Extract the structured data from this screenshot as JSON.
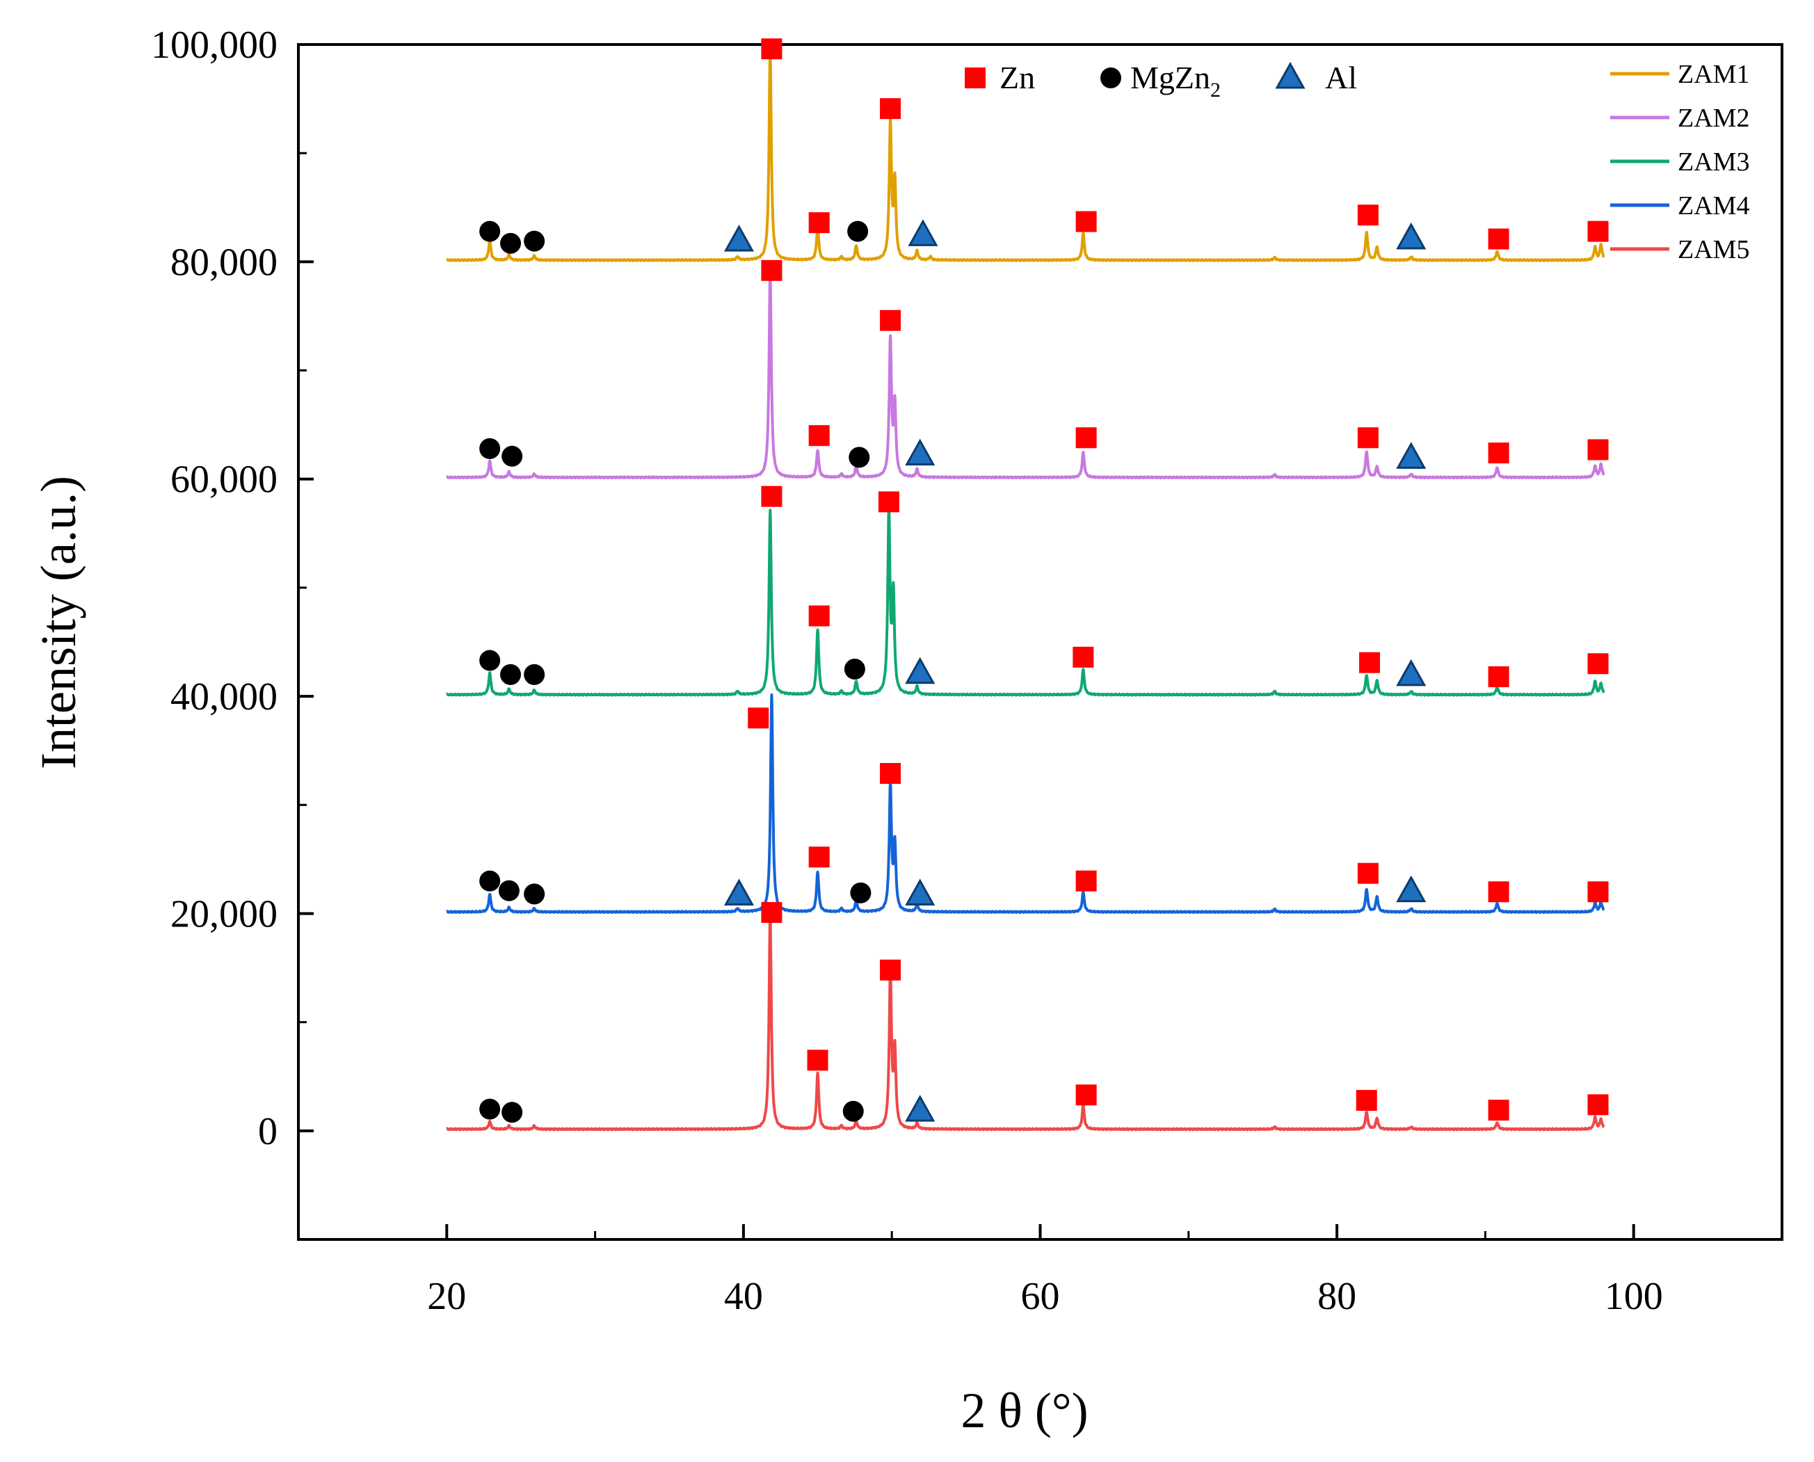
{
  "chart_data": {
    "type": "line",
    "title": "",
    "xlabel": "2 θ (°)",
    "ylabel": "Intensity (a.u.)",
    "xlim": [
      10,
      110
    ],
    "ylim": [
      -10000,
      100000
    ],
    "x_ticks": [
      20,
      40,
      60,
      80,
      100
    ],
    "x_tick_labels": [
      "20",
      "40",
      "60",
      "80",
      "100"
    ],
    "y_ticks": [
      0,
      20000,
      40000,
      60000,
      80000,
      100000
    ],
    "y_tick_labels": [
      "0",
      "20,000",
      "40,000",
      "60,000",
      "80,000",
      "100,000"
    ],
    "grid": false,
    "legend_position": "top-right",
    "phase_legend": {
      "zn": "Zn",
      "mgzn2_base": "MgZn",
      "mgzn2_sub": "2",
      "al": "Al"
    },
    "marker_colors": {
      "zn": "#ff0000",
      "mgzn2": "#000000",
      "al": "#1f6fc0"
    },
    "series": [
      {
        "name": "ZAM1",
        "color": "#e0a000",
        "offset": 80000,
        "peaks": [
          [
            22.9,
            1800
          ],
          [
            24.2,
            500
          ],
          [
            25.9,
            400
          ],
          [
            39.6,
            300
          ],
          [
            41.8,
            19500
          ],
          [
            45.0,
            3000
          ],
          [
            46.6,
            300
          ],
          [
            47.6,
            1300
          ],
          [
            49.9,
            12500
          ],
          [
            50.2,
            7000
          ],
          [
            51.7,
            800
          ],
          [
            52.6,
            300
          ],
          [
            62.9,
            2500
          ],
          [
            75.8,
            250
          ],
          [
            82.0,
            2600
          ],
          [
            82.7,
            1200
          ],
          [
            85.0,
            300
          ],
          [
            90.8,
            800
          ],
          [
            97.4,
            1200
          ],
          [
            97.8,
            1400
          ]
        ],
        "markers": [
          {
            "type": "mgzn2",
            "x": 22.9,
            "y": 82800
          },
          {
            "type": "mgzn2",
            "x": 24.3,
            "y": 81700
          },
          {
            "type": "mgzn2",
            "x": 25.9,
            "y": 81900
          },
          {
            "type": "al",
            "x": 39.7,
            "y": 82000
          },
          {
            "type": "zn",
            "x": 41.9,
            "y": 99600
          },
          {
            "type": "zn",
            "x": 45.1,
            "y": 83600
          },
          {
            "type": "mgzn2",
            "x": 47.7,
            "y": 82800
          },
          {
            "type": "zn",
            "x": 49.9,
            "y": 94100
          },
          {
            "type": "al",
            "x": 52.1,
            "y": 82500
          },
          {
            "type": "zn",
            "x": 63.1,
            "y": 83700
          },
          {
            "type": "zn",
            "x": 82.1,
            "y": 84300
          },
          {
            "type": "al",
            "x": 85.0,
            "y": 82200
          },
          {
            "type": "zn",
            "x": 90.9,
            "y": 82100
          },
          {
            "type": "zn",
            "x": 97.6,
            "y": 82800
          }
        ]
      },
      {
        "name": "ZAM2",
        "color": "#c878e0",
        "offset": 60000,
        "peaks": [
          [
            22.9,
            1500
          ],
          [
            24.2,
            500
          ],
          [
            25.9,
            300
          ],
          [
            41.8,
            19000
          ],
          [
            45.0,
            2500
          ],
          [
            46.6,
            300
          ],
          [
            47.6,
            1000
          ],
          [
            49.9,
            12500
          ],
          [
            50.2,
            6500
          ],
          [
            51.7,
            700
          ],
          [
            62.9,
            2300
          ],
          [
            75.8,
            250
          ],
          [
            82.0,
            2400
          ],
          [
            82.7,
            1000
          ],
          [
            85.0,
            300
          ],
          [
            90.8,
            900
          ],
          [
            97.4,
            1000
          ],
          [
            97.8,
            1200
          ]
        ],
        "markers": [
          {
            "type": "mgzn2",
            "x": 22.9,
            "y": 62800
          },
          {
            "type": "mgzn2",
            "x": 24.4,
            "y": 62100
          },
          {
            "type": "mgzn2",
            "x": 47.8,
            "y": 62000
          },
          {
            "type": "zn",
            "x": 41.9,
            "y": 79200
          },
          {
            "type": "zn",
            "x": 45.1,
            "y": 64000
          },
          {
            "type": "zn",
            "x": 49.9,
            "y": 74600
          },
          {
            "type": "al",
            "x": 51.9,
            "y": 62300
          },
          {
            "type": "zn",
            "x": 63.1,
            "y": 63800
          },
          {
            "type": "zn",
            "x": 82.1,
            "y": 63800
          },
          {
            "type": "al",
            "x": 85.0,
            "y": 62000
          },
          {
            "type": "zn",
            "x": 90.9,
            "y": 62400
          },
          {
            "type": "zn",
            "x": 97.6,
            "y": 62700
          }
        ]
      },
      {
        "name": "ZAM3",
        "color": "#10a870",
        "offset": 40000,
        "peaks": [
          [
            22.9,
            2000
          ],
          [
            24.2,
            500
          ],
          [
            25.9,
            400
          ],
          [
            39.6,
            300
          ],
          [
            41.8,
            17000
          ],
          [
            45.0,
            6000
          ],
          [
            46.6,
            300
          ],
          [
            47.6,
            1200
          ],
          [
            49.8,
            16500
          ],
          [
            50.1,
            9000
          ],
          [
            51.7,
            700
          ],
          [
            62.9,
            2300
          ],
          [
            75.8,
            300
          ],
          [
            82.0,
            1800
          ],
          [
            82.7,
            1300
          ],
          [
            85.0,
            300
          ],
          [
            90.8,
            700
          ],
          [
            97.4,
            1200
          ],
          [
            97.8,
            1000
          ]
        ],
        "markers": [
          {
            "type": "mgzn2",
            "x": 22.9,
            "y": 43300
          },
          {
            "type": "mgzn2",
            "x": 24.3,
            "y": 42000
          },
          {
            "type": "mgzn2",
            "x": 25.9,
            "y": 42000
          },
          {
            "type": "mgzn2",
            "x": 47.5,
            "y": 42500
          },
          {
            "type": "zn",
            "x": 41.9,
            "y": 58400
          },
          {
            "type": "zn",
            "x": 45.1,
            "y": 47400
          },
          {
            "type": "zn",
            "x": 49.8,
            "y": 57900
          },
          {
            "type": "al",
            "x": 51.9,
            "y": 42200
          },
          {
            "type": "zn",
            "x": 62.9,
            "y": 43600
          },
          {
            "type": "zn",
            "x": 82.2,
            "y": 43100
          },
          {
            "type": "al",
            "x": 85.0,
            "y": 42000
          },
          {
            "type": "zn",
            "x": 90.9,
            "y": 41800
          },
          {
            "type": "zn",
            "x": 97.6,
            "y": 43000
          }
        ]
      },
      {
        "name": "ZAM4",
        "color": "#1464d8",
        "offset": 20000,
        "peaks": [
          [
            22.9,
            1600
          ],
          [
            24.2,
            400
          ],
          [
            25.9,
            300
          ],
          [
            39.6,
            300
          ],
          [
            41.9,
            20000
          ],
          [
            45.0,
            3700
          ],
          [
            46.6,
            300
          ],
          [
            47.6,
            1000
          ],
          [
            49.9,
            11500
          ],
          [
            50.2,
            6000
          ],
          [
            51.7,
            700
          ],
          [
            62.9,
            1800
          ],
          [
            75.8,
            250
          ],
          [
            82.0,
            2100
          ],
          [
            82.7,
            1400
          ],
          [
            85.0,
            300
          ],
          [
            90.8,
            800
          ],
          [
            97.4,
            800
          ],
          [
            97.8,
            900
          ]
        ],
        "markers": [
          {
            "type": "mgzn2",
            "x": 22.9,
            "y": 23000
          },
          {
            "type": "mgzn2",
            "x": 24.2,
            "y": 22100
          },
          {
            "type": "mgzn2",
            "x": 25.9,
            "y": 21800
          },
          {
            "type": "mgzn2",
            "x": 47.9,
            "y": 21900
          },
          {
            "type": "al",
            "x": 39.7,
            "y": 21800
          },
          {
            "type": "zn",
            "x": 41.0,
            "y": 38000
          },
          {
            "type": "zn",
            "x": 45.1,
            "y": 25200
          },
          {
            "type": "zn",
            "x": 49.9,
            "y": 32900
          },
          {
            "type": "al",
            "x": 51.9,
            "y": 21800
          },
          {
            "type": "zn",
            "x": 63.1,
            "y": 23000
          },
          {
            "type": "zn",
            "x": 82.1,
            "y": 23700
          },
          {
            "type": "al",
            "x": 85.0,
            "y": 22100
          },
          {
            "type": "zn",
            "x": 90.9,
            "y": 22000
          },
          {
            "type": "zn",
            "x": 97.6,
            "y": 22000
          }
        ]
      },
      {
        "name": "ZAM5",
        "color": "#f04848",
        "offset": 0,
        "peaks": [
          [
            22.9,
            700
          ],
          [
            24.2,
            300
          ],
          [
            25.9,
            300
          ],
          [
            41.8,
            20000
          ],
          [
            45.0,
            5200
          ],
          [
            46.6,
            300
          ],
          [
            47.6,
            700
          ],
          [
            49.9,
            14300
          ],
          [
            50.2,
            7000
          ],
          [
            51.7,
            500
          ],
          [
            62.9,
            2200
          ],
          [
            75.8,
            200
          ],
          [
            82.0,
            1600
          ],
          [
            82.7,
            1000
          ],
          [
            85.0,
            200
          ],
          [
            90.8,
            600
          ],
          [
            97.4,
            1100
          ],
          [
            97.8,
            900
          ]
        ],
        "markers": [
          {
            "type": "mgzn2",
            "x": 22.9,
            "y": 2000
          },
          {
            "type": "mgzn2",
            "x": 24.4,
            "y": 1700
          },
          {
            "type": "mgzn2",
            "x": 47.4,
            "y": 1800
          },
          {
            "type": "zn",
            "x": 41.9,
            "y": 20100
          },
          {
            "type": "zn",
            "x": 45.0,
            "y": 6500
          },
          {
            "type": "zn",
            "x": 49.9,
            "y": 14800
          },
          {
            "type": "al",
            "x": 51.9,
            "y": 1900
          },
          {
            "type": "zn",
            "x": 63.1,
            "y": 3300
          },
          {
            "type": "zn",
            "x": 82.0,
            "y": 2800
          },
          {
            "type": "zn",
            "x": 90.9,
            "y": 1900
          },
          {
            "type": "zn",
            "x": 97.6,
            "y": 2400
          }
        ]
      }
    ]
  }
}
